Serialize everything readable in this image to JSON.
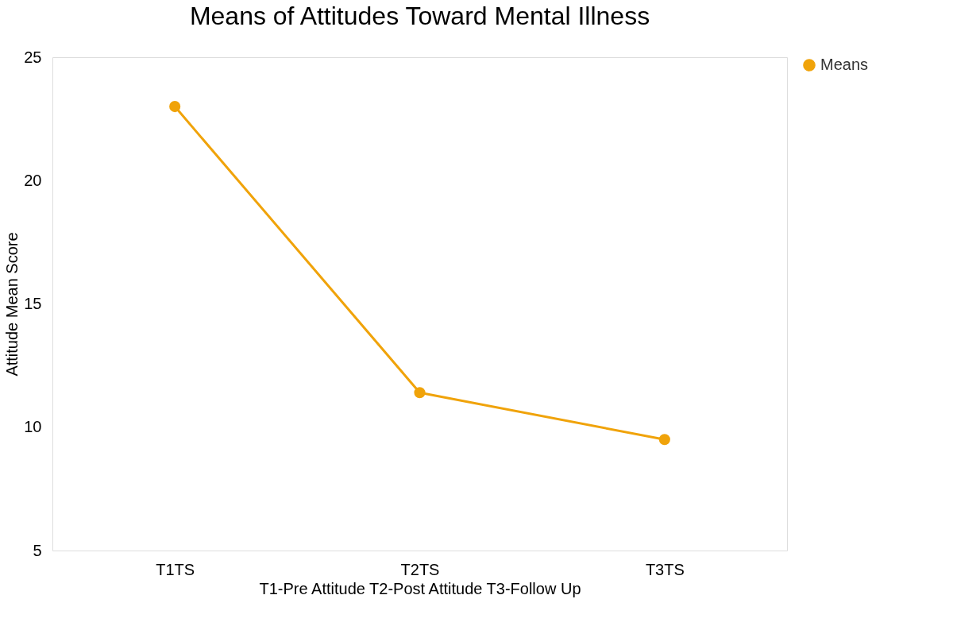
{
  "chart_data": {
    "type": "line",
    "title": "Means of Attitudes Toward Mental Illness",
    "xlabel": "T1-Pre Attitude T2-Post Attitude T3-Follow Up",
    "ylabel": "Attitude Mean Score",
    "categories": [
      "T1TS",
      "T2TS",
      "T3TS"
    ],
    "series": [
      {
        "name": "Means",
        "color": "#f0a30a",
        "values": [
          23.0,
          11.4,
          9.5
        ]
      }
    ],
    "ylim": [
      5,
      25
    ],
    "yticks": [
      5,
      10,
      15,
      20,
      25
    ],
    "grid": false,
    "legend": "right",
    "marker": "circle",
    "line_style": "solid"
  }
}
